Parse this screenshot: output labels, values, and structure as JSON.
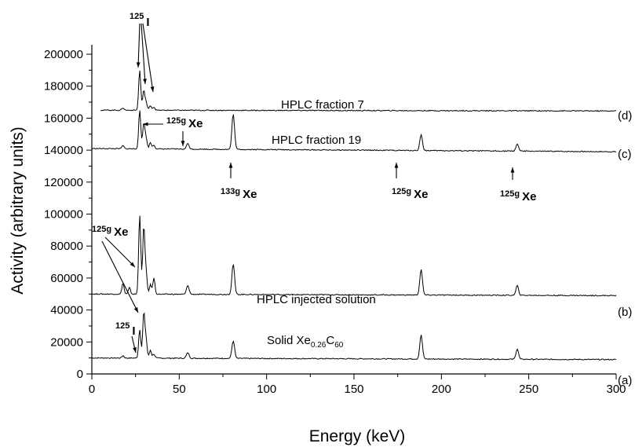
{
  "chart_data": {
    "type": "line",
    "title": "",
    "xlabel": "Energy (keV)",
    "ylabel": "Activity (arbitrary units)",
    "xlim": [
      0,
      300
    ],
    "ylim": [
      0,
      210000
    ],
    "xticks": [
      0,
      50,
      100,
      150,
      200,
      250,
      300
    ],
    "yticks": [
      0,
      20000,
      40000,
      60000,
      80000,
      100000,
      120000,
      140000,
      160000,
      180000,
      200000
    ],
    "grid": false,
    "legend": "none",
    "series": [
      {
        "name": "(a)",
        "label": "Solid Xe",
        "label_sub": "0.26",
        "label_tail": "C",
        "label_sub2": "60",
        "baseline_start": 10000,
        "baseline_end": 9000,
        "peaks": [
          [
            17.8,
            1500
          ],
          [
            27.4,
            18000
          ],
          [
            29.7,
            28000
          ],
          [
            31.0,
            12000
          ],
          [
            33.5,
            5000
          ],
          [
            35.5,
            2500
          ],
          [
            54.9,
            3500
          ],
          [
            80.9,
            11000
          ],
          [
            188.4,
            15000
          ],
          [
            243.4,
            6500
          ]
        ]
      },
      {
        "name": "(b)",
        "label": "HPLC injected solution",
        "baseline_start": 50000,
        "baseline_end": 49000,
        "peaks": [
          [
            17.8,
            7000
          ],
          [
            21.5,
            4000
          ],
          [
            27.4,
            50000
          ],
          [
            29.7,
            42000
          ],
          [
            31.0,
            14000
          ],
          [
            33.5,
            6000
          ],
          [
            35.5,
            10000
          ],
          [
            54.9,
            5500
          ],
          [
            80.9,
            19000
          ],
          [
            188.4,
            16000
          ],
          [
            243.4,
            6000
          ]
        ]
      },
      {
        "name": "(c)",
        "label": "HPLC fraction 19",
        "baseline_start": 141000,
        "baseline_end": 139000,
        "peaks": [
          [
            17.8,
            2000
          ],
          [
            27.4,
            24000
          ],
          [
            29.7,
            16000
          ],
          [
            31.0,
            7000
          ],
          [
            33.5,
            4000
          ],
          [
            35.5,
            2500
          ],
          [
            54.9,
            3500
          ],
          [
            80.9,
            22000
          ],
          [
            188.4,
            10000
          ],
          [
            243.4,
            4500
          ]
        ]
      },
      {
        "name": "(d)",
        "label": "HPLC fraction 7",
        "baseline_start": 165000,
        "baseline_end": 164500,
        "start_x": 5,
        "peaks": [
          [
            17.8,
            1500
          ],
          [
            27.4,
            25000
          ],
          [
            29.7,
            12000
          ],
          [
            31.0,
            5000
          ],
          [
            33.5,
            3000
          ],
          [
            35.5,
            2000
          ]
        ]
      }
    ],
    "annotations": [
      {
        "sup": "125",
        "text": "I"
      },
      {
        "sup": "125g",
        "text": "Xe"
      },
      {
        "sup": "133g",
        "text": "Xe"
      },
      {
        "sup": "125g",
        "text": "Xe"
      },
      {
        "sup": "125g",
        "text": "Xe"
      },
      {
        "sup": "125g",
        "text": "Xe"
      },
      {
        "sup": "125",
        "text": "I"
      }
    ]
  }
}
